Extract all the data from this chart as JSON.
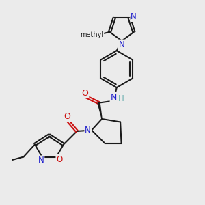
{
  "background_color": "#ebebeb",
  "atom_colors": {
    "C": "#1a1a1a",
    "N": "#2020cc",
    "O": "#cc1010",
    "H": "#6aafaf"
  },
  "bond_color": "#1a1a1a",
  "bond_width": 1.5,
  "fig_size": [
    3.0,
    3.0
  ],
  "dpi": 100,
  "xlim": [
    0,
    10
  ],
  "ylim": [
    0,
    10
  ]
}
